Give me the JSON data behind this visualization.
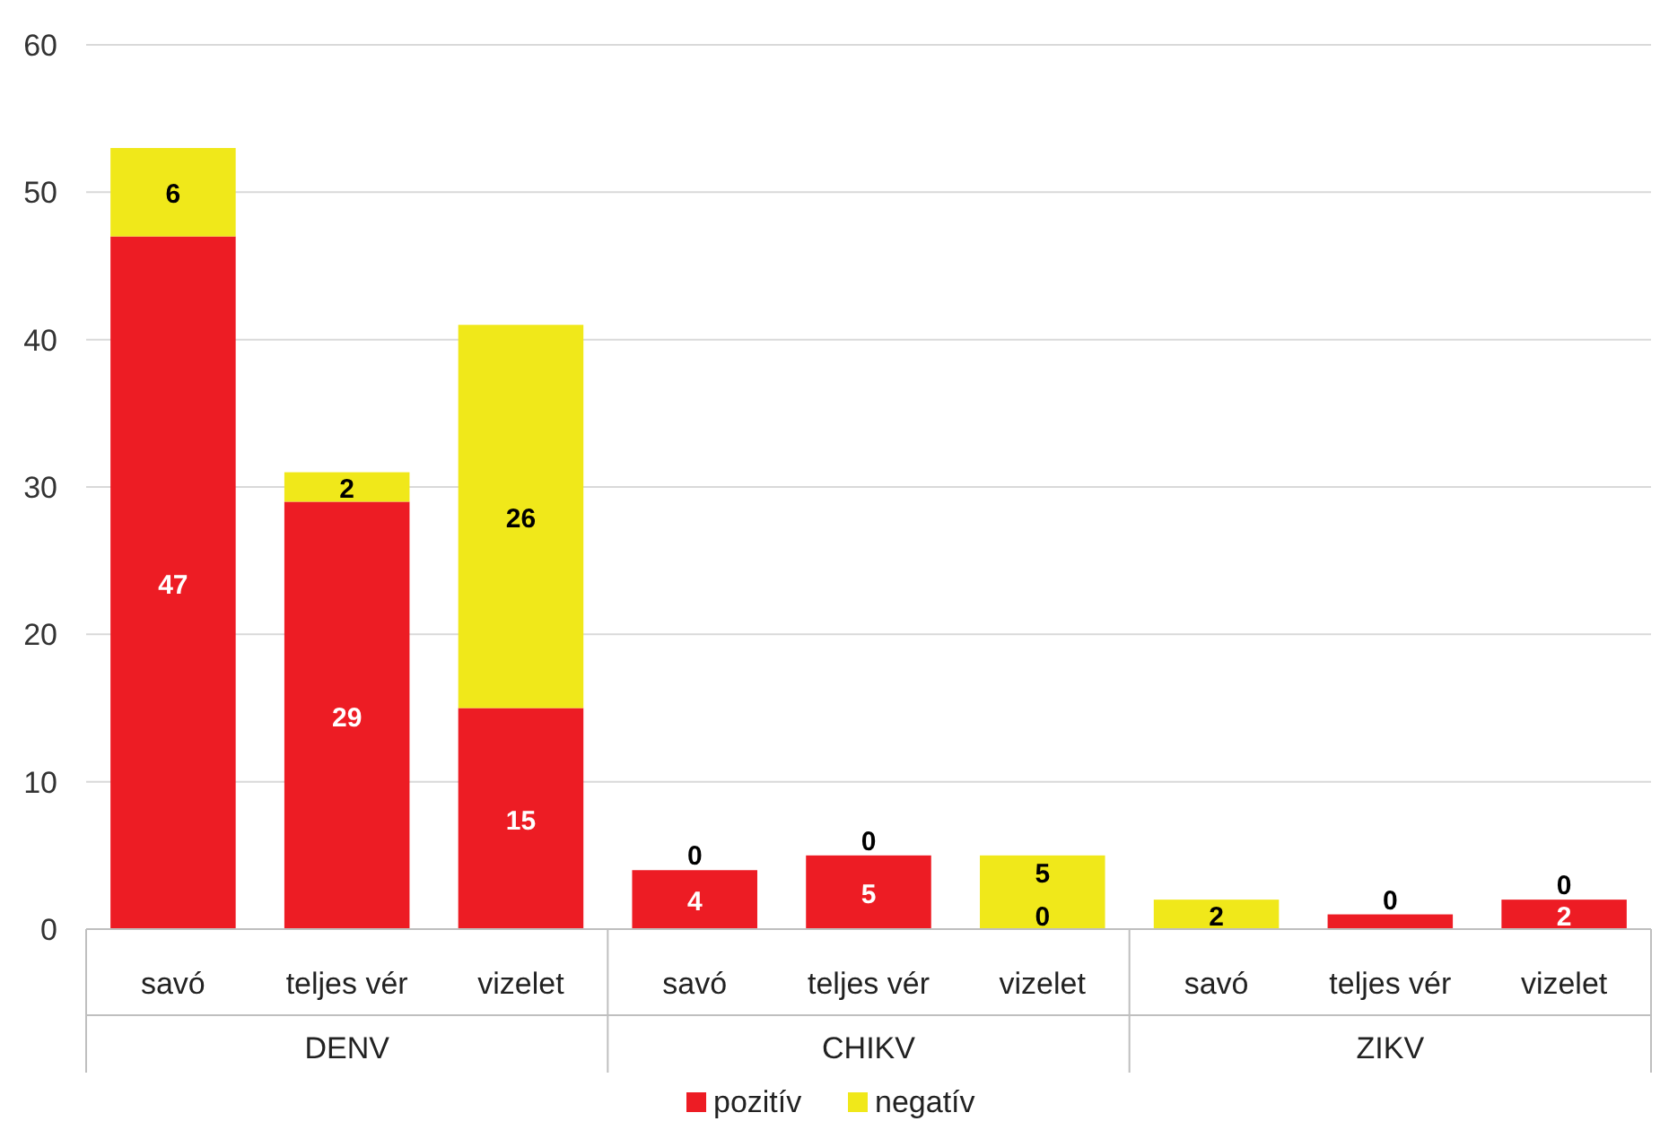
{
  "chart_data": {
    "type": "bar",
    "stacked": true,
    "categories": [
      "savó",
      "teljes vér",
      "vizelet",
      "savó",
      "teljes vér",
      "vizelet",
      "savó",
      "teljes vér",
      "vizelet"
    ],
    "series": [
      {
        "name": "pozitív",
        "color": "#ed1c24",
        "values": [
          47,
          29,
          15,
          4,
          5,
          0,
          0,
          1,
          2
        ],
        "value_labels": [
          "47",
          "29",
          "15",
          "4",
          "5",
          "0",
          null,
          null,
          "2"
        ]
      },
      {
        "name": "negatív",
        "color": "#f0e81a",
        "values": [
          6,
          2,
          26,
          0,
          0,
          5,
          2,
          0,
          0
        ],
        "value_labels": [
          "6",
          "2",
          "26",
          "0",
          "0",
          "5",
          "2",
          "0",
          "0"
        ]
      }
    ],
    "annotations": [
      "DENV",
      "CHIKV",
      "ZIKV"
    ],
    "ylim": [
      0,
      60
    ],
    "yticks": [
      0,
      10,
      20,
      30,
      40,
      50,
      60
    ],
    "grid": "y",
    "legend": "bottom"
  }
}
